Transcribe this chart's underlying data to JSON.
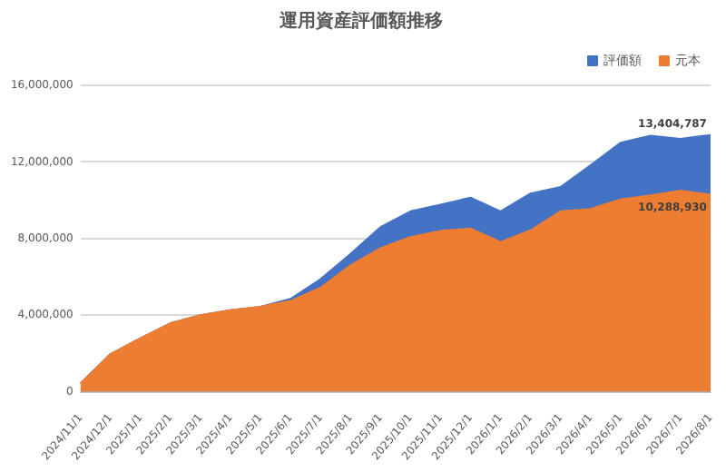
{
  "chart_data": {
    "type": "area",
    "title": "運用資産評価額推移",
    "categories": [
      "2024/11/1",
      "2024/12/1",
      "2025/1/1",
      "2025/2/1",
      "2025/3/1",
      "2025/4/1",
      "2025/5/1",
      "2025/6/1",
      "2025/7/1",
      "2025/8/1",
      "2025/9/1",
      "2025/10/1",
      "2025/11/1",
      "2025/12/1",
      "2026/1/1",
      "2026/2/1",
      "2026/3/1",
      "2026/4/1",
      "2026/5/1",
      "2026/6/1",
      "2026/7/1",
      "2026/8/1"
    ],
    "series": [
      {
        "name": "評価額",
        "color": "#4472c4",
        "values": [
          430000,
          1970000,
          2800000,
          3580000,
          4000000,
          4260000,
          4440000,
          4850000,
          5880000,
          7200000,
          8600000,
          9420000,
          9770000,
          10140000,
          9420000,
          10350000,
          10690000,
          11830000,
          13000000,
          13370000,
          13210000,
          13404787
        ],
        "value_labels": [
          null,
          null,
          null,
          null,
          null,
          null,
          null,
          null,
          null,
          null,
          null,
          null,
          null,
          null,
          null,
          null,
          null,
          null,
          null,
          null,
          null,
          "13,404,787"
        ]
      },
      {
        "name": "元本",
        "color": "#ed7d31",
        "values": [
          430000,
          1970000,
          2800000,
          3580000,
          4000000,
          4260000,
          4440000,
          4740000,
          5430000,
          6600000,
          7500000,
          8080000,
          8400000,
          8520000,
          7820000,
          8430000,
          9420000,
          9540000,
          10040000,
          10250000,
          10500000,
          10288930
        ],
        "value_labels": [
          null,
          null,
          null,
          null,
          null,
          null,
          null,
          null,
          null,
          null,
          null,
          null,
          null,
          null,
          null,
          null,
          null,
          null,
          null,
          null,
          null,
          "10,288,930"
        ]
      }
    ],
    "ylim": [
      0,
      16000000
    ],
    "yticks": [
      {
        "value": 0,
        "label": "0"
      },
      {
        "value": 4000000,
        "label": "4,000,000"
      },
      {
        "value": 8000000,
        "label": "8,000,000"
      },
      {
        "value": 12000000,
        "label": "12,000,000"
      },
      {
        "value": 16000000,
        "label": "16,000,000"
      }
    ],
    "grid": "y",
    "legend": "top right",
    "marker": "none"
  }
}
